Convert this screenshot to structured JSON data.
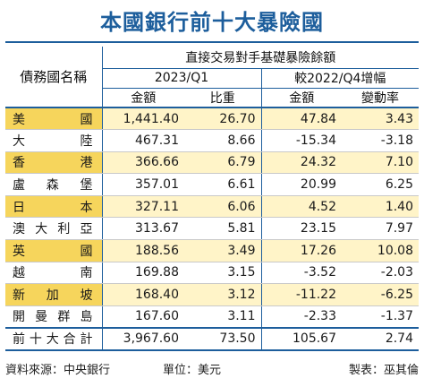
{
  "title": "本國銀行前十大暴險國",
  "header": {
    "country_col": "債務國名稱",
    "group": "直接交易對手基礎暴險餘額",
    "sub_left": "2023/Q1",
    "sub_right": "較2022/Q4增幅",
    "cols": [
      "金額",
      "比重",
      "金額",
      "變動率"
    ]
  },
  "rows": [
    [
      "美國",
      "1,441.40",
      "26.70",
      "47.84",
      "3.43"
    ],
    [
      "大陸",
      "467.31",
      "8.66",
      "-15.34",
      "-3.18"
    ],
    [
      "香港",
      "366.66",
      "6.79",
      "24.32",
      "7.10"
    ],
    [
      "盧森堡",
      "357.01",
      "6.61",
      "20.99",
      "6.25"
    ],
    [
      "日本",
      "327.11",
      "6.06",
      "4.52",
      "1.40"
    ],
    [
      "澳大利亞",
      "313.67",
      "5.81",
      "23.15",
      "7.97"
    ],
    [
      "英國",
      "188.56",
      "3.49",
      "17.26",
      "10.08"
    ],
    [
      "越南",
      "169.88",
      "3.15",
      "-3.52",
      "-2.03"
    ],
    [
      "新加坡",
      "168.40",
      "3.12",
      "-11.22",
      "-6.25"
    ],
    [
      "開曼群島",
      "167.60",
      "3.11",
      "-2.33",
      "-1.37"
    ],
    [
      "前十大合計",
      "3,967.60",
      "73.50",
      "105.67",
      "2.74"
    ]
  ],
  "footer": {
    "source": "資料來源：中央銀行",
    "unit": "單位：美元",
    "maker": "製表：巫其倫"
  }
}
